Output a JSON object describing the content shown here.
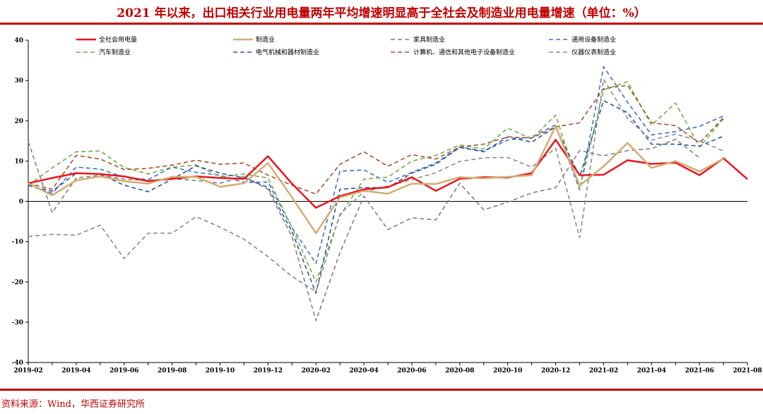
{
  "title": "2021 年以来，出口相关行业用电量两年平均增速明显高于全社会及制造业用电量增速（单位：%）",
  "source": "资料来源：Wind，华西证券研究所",
  "colors": {
    "accent": "#c00000"
  },
  "chart_data": {
    "type": "line",
    "title": "2021 年以来，出口相关行业用电量两年平均增速明显高于全社会及制造业用电量增速（单位：%）",
    "ylim": [
      -40,
      40
    ],
    "yticks": [
      "40",
      "30",
      "20",
      "10",
      "0",
      "-10",
      "-20",
      "-30",
      "-40"
    ],
    "yticks_values": [
      40,
      30,
      20,
      10,
      0,
      -10,
      -20,
      -30,
      -40
    ],
    "xticks": [
      "2019-02",
      "2019-04",
      "2019-06",
      "2019-08",
      "2019-10",
      "2019-12",
      "2020-02",
      "2020-04",
      "2020-06",
      "2020-08",
      "2020-10",
      "2020-12",
      "2021-02",
      "2021-04",
      "2021-06",
      "2021-08"
    ],
    "x": [
      "2019-02",
      "2019-03",
      "2019-04",
      "2019-05",
      "2019-06",
      "2019-07",
      "2019-08",
      "2019-09",
      "2019-10",
      "2019-11",
      "2019-12",
      "2020-01",
      "2020-02",
      "2020-03",
      "2020-04",
      "2020-05",
      "2020-06",
      "2020-07",
      "2020-08",
      "2020-09",
      "2020-10",
      "2020-11",
      "2020-12",
      "2021-01",
      "2021-02",
      "2021-03",
      "2021-04",
      "2021-05",
      "2021-06",
      "2021-07",
      "2021-08"
    ],
    "grid": false,
    "legend_position": "top",
    "series": [
      {
        "name": "全社会用电量",
        "color": "#e8161d",
        "dash": "solid",
        "width": 2.5,
        "values": [
          4.5,
          5.8,
          7.0,
          6.8,
          6.2,
          5.0,
          5.6,
          6.2,
          5.8,
          5.6,
          11.2,
          4.4,
          -1.6,
          1.3,
          3.0,
          3.5,
          6.0,
          2.6,
          5.6,
          6.0,
          5.9,
          7.0,
          15.3,
          6.5,
          6.6,
          10.2,
          9.3,
          9.6,
          6.5,
          10.7,
          5.5
        ]
      },
      {
        "name": "制造业",
        "color": "#d2ad73",
        "dash": "solid",
        "width": 2.5,
        "values": [
          4.5,
          1.5,
          5.2,
          6.2,
          5.0,
          4.4,
          6.1,
          6.1,
          3.6,
          4.5,
          9.5,
          1.0,
          -7.9,
          1.0,
          2.6,
          1.9,
          4.4,
          4.3,
          6.0,
          5.7,
          6.1,
          6.5,
          18.6,
          3.9,
          8.7,
          14.5,
          8.3,
          10.0,
          7.4,
          10.6,
          null
        ]
      },
      {
        "name": "家具制造业",
        "color": "#7f7f7f",
        "dash": "dash",
        "width": 1.6,
        "values": [
          14.8,
          -2.8,
          5.8,
          6.5,
          5.5,
          5.2,
          5.6,
          5.2,
          4.5,
          6.2,
          3.0,
          -8.8,
          -29.6,
          -12.8,
          1.3,
          -7.0,
          -4.1,
          -4.6,
          4.5,
          -2.1,
          -0.2,
          2.1,
          3.4,
          12.6,
          11.3,
          12.6,
          13.1,
          15.4,
          10.8,
          null,
          null
        ]
      },
      {
        "name": "通用设备制造业",
        "color": "#4472c4",
        "dash": "dash",
        "width": 1.6,
        "values": [
          4.0,
          2.0,
          8.5,
          8.0,
          6.0,
          5.4,
          8.5,
          7.2,
          6.5,
          4.7,
          4.8,
          -6.5,
          -15.4,
          7.5,
          7.8,
          4.7,
          7.2,
          9.5,
          13.5,
          12.5,
          15.2,
          16.0,
          19.0,
          2.8,
          33.4,
          24.6,
          16.5,
          17.3,
          18.6,
          21.2,
          null
        ]
      },
      {
        "name": "汽车制造业",
        "color": "#70ad47",
        "dash": "dash",
        "width": 1.6,
        "values": [
          4.0,
          8.3,
          12.3,
          12.5,
          8.4,
          6.8,
          8.5,
          9.0,
          6.1,
          6.8,
          5.8,
          -6.5,
          -20.0,
          -3.6,
          5.5,
          6.0,
          10.0,
          11.4,
          14.0,
          13.0,
          18.2,
          15.5,
          21.4,
          3.0,
          27.7,
          29.7,
          18.9,
          24.4,
          13.5,
          20.5,
          null
        ]
      },
      {
        "name": "电气机械和器材制造业",
        "color": "#2e5597",
        "dash": "dash",
        "width": 1.6,
        "values": [
          4.0,
          2.5,
          7.0,
          6.8,
          4.0,
          2.4,
          5.5,
          8.8,
          7.0,
          5.8,
          3.5,
          -7.5,
          -22.8,
          3.0,
          3.4,
          3.4,
          7.0,
          9.2,
          13.4,
          12.3,
          16.0,
          14.7,
          18.5,
          6.2,
          25.0,
          22.0,
          14.2,
          14.2,
          13.7,
          16.2,
          null
        ]
      },
      {
        "name": "计算机、通信和其他电子设备制造业",
        "color": "#a5532b",
        "dash": "dash",
        "width": 1.6,
        "values": [
          4.5,
          3.0,
          11.4,
          10.5,
          7.9,
          8.2,
          9.0,
          10.2,
          9.2,
          9.5,
          6.5,
          4.0,
          1.8,
          9.2,
          12.3,
          8.7,
          11.6,
          10.5,
          13.5,
          14.2,
          16.0,
          15.7,
          18.5,
          19.5,
          28.0,
          28.8,
          19.5,
          18.8,
          14.5,
          20.8,
          null
        ]
      },
      {
        "name": "仪器仪表制造业",
        "color": "#8c8c8c",
        "dash": "dash",
        "width": 1.6,
        "values": [
          -8.7,
          -8.2,
          -8.4,
          -5.9,
          -14.2,
          -7.9,
          -7.9,
          -3.8,
          -6.4,
          -9.4,
          -13.7,
          -18.6,
          -22.4,
          -3.2,
          2.4,
          3.8,
          5.4,
          7.1,
          9.9,
          10.8,
          10.9,
          8.5,
          13.2,
          -9.0,
          30.3,
          20.6,
          15.2,
          16.7,
          15.0,
          12.5,
          null
        ]
      }
    ]
  }
}
